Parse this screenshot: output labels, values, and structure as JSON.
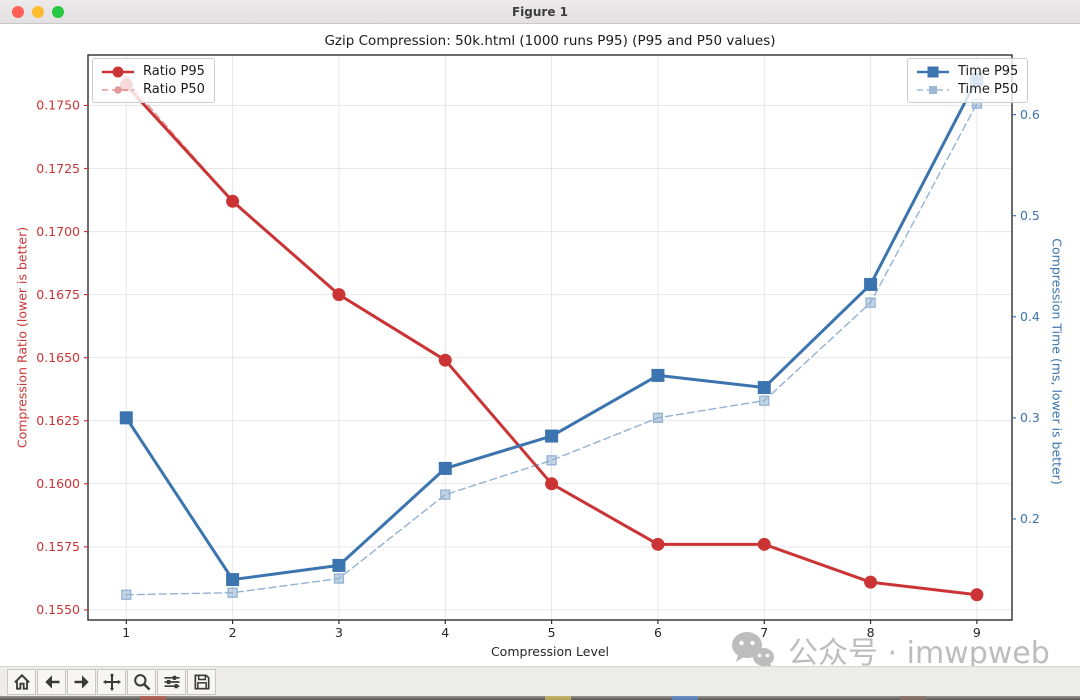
{
  "window": {
    "title": "Figure 1",
    "controls": {
      "close": "close",
      "minimize": "minimize",
      "zoom": "zoom"
    }
  },
  "chart_data": {
    "type": "line",
    "title": "Gzip Compression: 50k.html (1000 runs P95) (P95 and P50 values)",
    "xlabel": "Compression Level",
    "ylabel_left": "Compression Ratio (lower is better)",
    "ylabel_right": "Compression Time (ms, lower is better)",
    "x": [
      1,
      2,
      3,
      4,
      5,
      6,
      7,
      8,
      9
    ],
    "x_ticks": [
      "1",
      "2",
      "3",
      "4",
      "5",
      "6",
      "7",
      "8",
      "9"
    ],
    "x_range": [
      0.64,
      9.33
    ],
    "grid": true,
    "left_axis": {
      "ticks": [
        "0.1550",
        "0.1575",
        "0.1600",
        "0.1625",
        "0.1650",
        "0.1675",
        "0.1700",
        "0.1725",
        "0.1750"
      ],
      "range": [
        0.1546,
        0.177
      ],
      "color": "#cb3435"
    },
    "right_axis": {
      "ticks": [
        "0.2",
        "0.3",
        "0.4",
        "0.5",
        "0.6"
      ],
      "range": [
        0.1,
        0.659
      ],
      "color": "#3b74ae"
    },
    "series": [
      {
        "name": "Ratio P95",
        "axis": "left",
        "style": "solid",
        "marker": "circle",
        "color": "#cb3435",
        "opacity": 1,
        "values": [
          0.1758,
          0.1712,
          0.1675,
          0.1649,
          0.16,
          0.1576,
          0.1576,
          0.1561,
          0.1556
        ]
      },
      {
        "name": "Ratio P50",
        "axis": "left",
        "style": "dashed",
        "marker": "circle-small",
        "color": "#cb3435",
        "opacity": 0.5,
        "values": [
          0.176,
          0.1712,
          0.1675,
          0.1649,
          0.16,
          0.1576,
          0.1576,
          0.1561,
          0.1556
        ]
      },
      {
        "name": "Time P95",
        "axis": "right",
        "style": "solid",
        "marker": "square",
        "color": "#3b74ae",
        "opacity": 1,
        "values": [
          0.3,
          0.14,
          0.154,
          0.25,
          0.282,
          0.342,
          0.33,
          0.432,
          0.635
        ]
      },
      {
        "name": "Time P50",
        "axis": "right",
        "style": "dashed",
        "marker": "square-small",
        "color": "#3b74ae",
        "opacity": 0.55,
        "values": [
          0.125,
          0.127,
          0.141,
          0.224,
          0.258,
          0.3,
          0.317,
          0.414,
          0.611
        ]
      }
    ],
    "legends": [
      {
        "position": "upper-left",
        "entries": [
          "Ratio P95",
          "Ratio P50"
        ]
      },
      {
        "position": "upper-right",
        "entries": [
          "Time P95",
          "Time P50"
        ]
      }
    ]
  },
  "watermark": {
    "icon": "wechat-icon",
    "text": "公众号 · imwpweb"
  },
  "toolbar": {
    "icons": [
      "home-icon",
      "back-icon",
      "forward-icon",
      "pan-icon",
      "zoom-icon",
      "subplots-icon",
      "save-icon"
    ]
  }
}
